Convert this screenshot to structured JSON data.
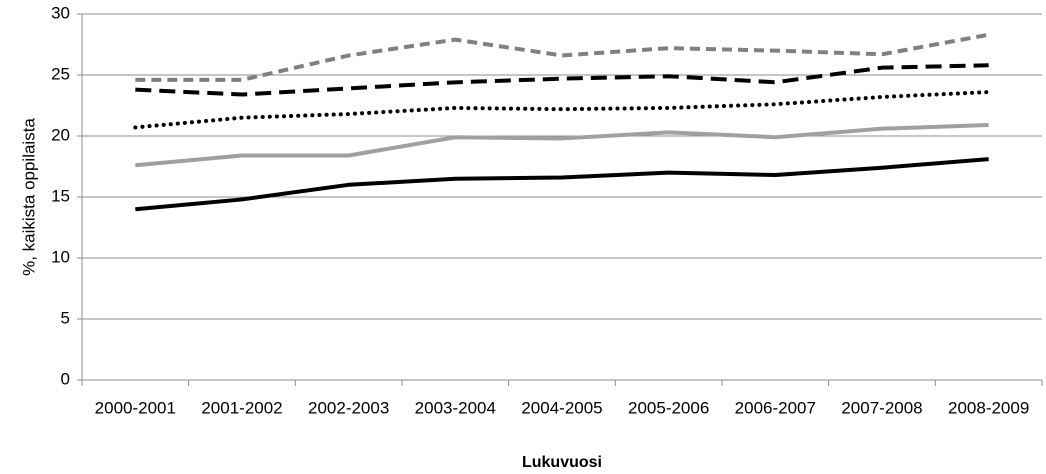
{
  "chart_data": {
    "type": "line",
    "y_label": "%, kaikista oppilaista",
    "x_label": "Lukuvuosi",
    "categories": [
      "2000-2001",
      "2001-2002",
      "2002-2003",
      "2003-2004",
      "2004-2005",
      "2005-2006",
      "2006-2007",
      "2007-2008",
      "2008-2009"
    ],
    "series": [
      {
        "color": "#808080",
        "dash": "dashed",
        "values": [
          24.6,
          24.6,
          26.6,
          27.9,
          26.6,
          27.2,
          27.0,
          26.7,
          28.3
        ]
      },
      {
        "color": "#000000",
        "dash": "longdash",
        "values": [
          23.8,
          23.4,
          23.9,
          24.4,
          24.7,
          24.9,
          24.4,
          25.6,
          25.8
        ]
      },
      {
        "color": "#000000",
        "dash": "dotted",
        "values": [
          20.7,
          21.5,
          21.8,
          22.3,
          22.2,
          22.3,
          22.6,
          23.2,
          23.6
        ]
      },
      {
        "color": "#a0a0a0",
        "dash": "solid",
        "values": [
          17.6,
          18.4,
          18.4,
          19.9,
          19.8,
          20.3,
          19.9,
          20.6,
          20.9
        ]
      },
      {
        "color": "#000000",
        "dash": "solid",
        "values": [
          14.0,
          14.8,
          16.0,
          16.5,
          16.6,
          17.0,
          16.8,
          17.4,
          18.1
        ]
      }
    ],
    "ylim": [
      0,
      30
    ],
    "yticks": [
      0,
      5,
      10,
      15,
      20,
      25,
      30
    ],
    "grid": true
  }
}
